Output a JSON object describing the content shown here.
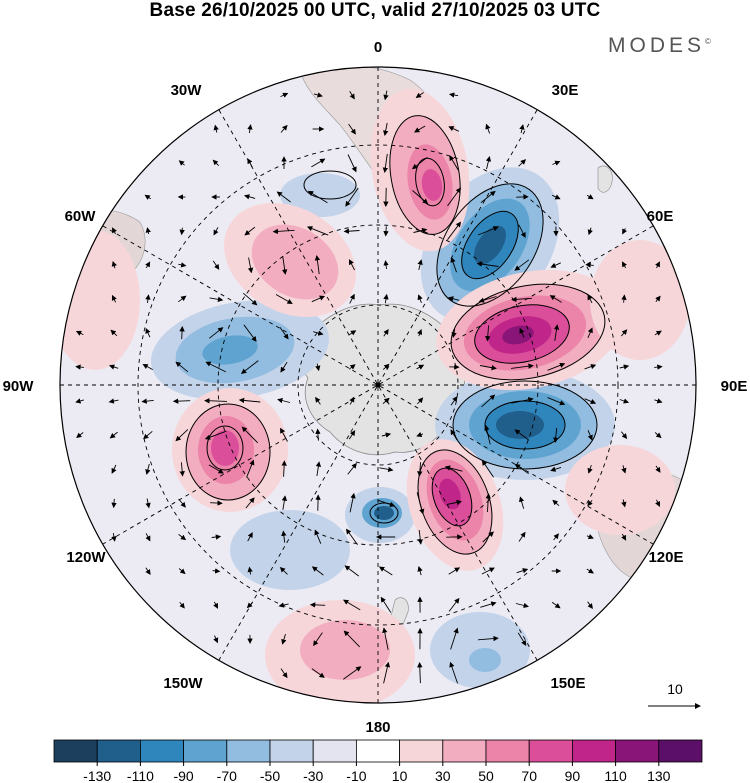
{
  "title": "Base 26/10/2025 00 UTC, valid 27/10/2025 03 UTC",
  "brand": "MODES",
  "brand_mark": "©",
  "longitude_labels": {
    "top": "0",
    "top_right": "30E",
    "right_upper": "60E",
    "right": "90E",
    "right_lower": "120E",
    "bottom_right": "150E",
    "bottom": "180",
    "bottom_left": "150W",
    "left_lower": "120W",
    "left": "90W",
    "left_upper": "60W",
    "top_left": "30W"
  },
  "reference_vector": {
    "label": "10"
  },
  "colorbar": {
    "ticks": [
      "-130",
      "-110",
      "-90",
      "-70",
      "-50",
      "-30",
      "-10",
      "10",
      "30",
      "50",
      "70",
      "90",
      "110",
      "130"
    ],
    "colors": [
      "#1d3f5e",
      "#205f8c",
      "#2f86bd",
      "#5fa4d0",
      "#92bde0",
      "#c3d3ea",
      "#e4e4f0",
      "#ffffff",
      "#f7d6da",
      "#f2aec0",
      "#ec83a8",
      "#db4f9a",
      "#c02689",
      "#8a1578",
      "#5c0f68"
    ]
  },
  "map_colors": {
    "land": "#e3e3e3",
    "coast": "#888888",
    "grid": "#000000"
  }
}
